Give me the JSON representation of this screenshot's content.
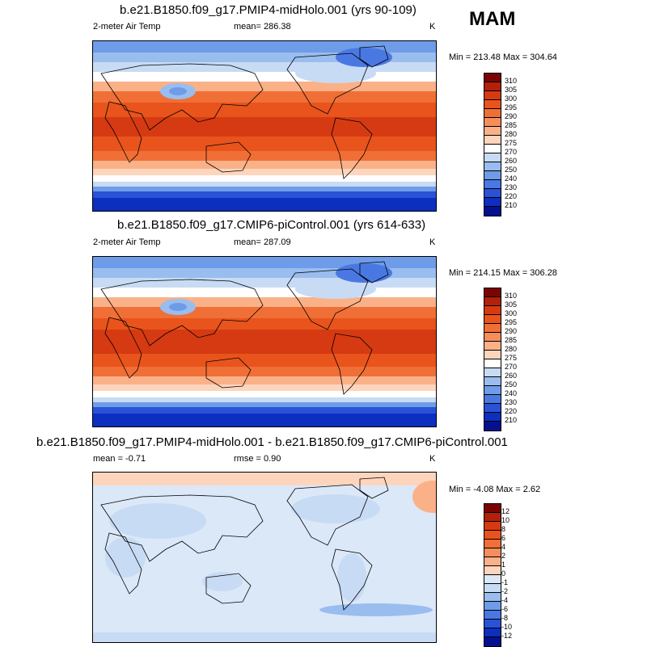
{
  "season": "MAM",
  "panels": [
    {
      "title": "b.e21.B1850.f09_g17.PMIP4-midHolo.001 (yrs 90-109)",
      "left_label": "2-meter Air Temp",
      "stat1": "mean= 286.38",
      "stat2": "",
      "units": "K",
      "minmax": "Min = 213.48 Max = 304.64",
      "levels": [
        "310",
        "305",
        "300",
        "295",
        "290",
        "285",
        "280",
        "275",
        "270",
        "260",
        "250",
        "240",
        "230",
        "220",
        "210"
      ],
      "colors": [
        "#7a0403",
        "#b3200b",
        "#d63a12",
        "#e8541c",
        "#f06f36",
        "#f58d5c",
        "#fab188",
        "#fdd5bd",
        "#ffffff",
        "#c8dbf4",
        "#99bdee",
        "#6f9ce8",
        "#4a78e3",
        "#2a52d6",
        "#0c2fc0",
        "#05108e"
      ]
    },
    {
      "title": "b.e21.B1850.f09_g17.CMIP6-piControl.001 (yrs 614-633)",
      "left_label": "2-meter Air Temp",
      "stat1": "mean= 287.09",
      "stat2": "",
      "units": "K",
      "minmax": "Min = 214.15 Max = 306.28",
      "levels": [
        "310",
        "305",
        "300",
        "295",
        "290",
        "285",
        "280",
        "275",
        "270",
        "260",
        "250",
        "240",
        "230",
        "220",
        "210"
      ],
      "colors": [
        "#7a0403",
        "#b3200b",
        "#d63a12",
        "#e8541c",
        "#f06f36",
        "#f58d5c",
        "#fab188",
        "#fdd5bd",
        "#ffffff",
        "#c8dbf4",
        "#99bdee",
        "#6f9ce8",
        "#4a78e3",
        "#2a52d6",
        "#0c2fc0",
        "#05108e"
      ]
    },
    {
      "title": "b.e21.B1850.f09_g17.PMIP4-midHolo.001 - b.e21.B1850.f09_g17.CMIP6-piControl.001",
      "left_label": "mean =  -0.71",
      "stat1": "rmse =   0.90",
      "stat2": "",
      "units": "K",
      "minmax": "Min =  -4.08 Max =   2.62",
      "levels": [
        "12",
        "10",
        "8",
        "6",
        "4",
        "2",
        "1",
        "0",
        "-1",
        "-2",
        "-4",
        "-6",
        "-8",
        "-10",
        "-12"
      ],
      "colors": [
        "#7a0403",
        "#b3200b",
        "#d63a12",
        "#e8541c",
        "#f06f36",
        "#f58d5c",
        "#fab188",
        "#fdd5bd",
        "#dbe8f8",
        "#c8dbf4",
        "#99bdee",
        "#6f9ce8",
        "#4a78e3",
        "#2a52d6",
        "#0c2fc0",
        "#05108e"
      ]
    }
  ]
}
